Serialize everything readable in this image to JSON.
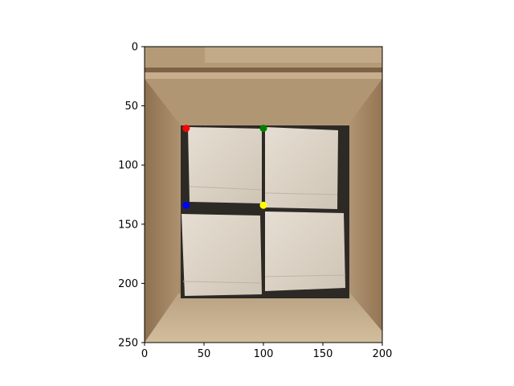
{
  "chart_data": {
    "type": "scatter",
    "title": "",
    "xlabel": "",
    "ylabel": "",
    "xlim": [
      0,
      200
    ],
    "ylim": [
      250,
      0
    ],
    "y_inverted": true,
    "grid": false,
    "background": "photo of an open cardboard box containing four white boxes",
    "x_ticks": [
      0,
      50,
      100,
      150,
      200
    ],
    "y_ticks": [
      0,
      50,
      100,
      150,
      200,
      250
    ],
    "series": [
      {
        "color": "#ff0000",
        "x": [
          35
        ],
        "y": [
          69
        ]
      },
      {
        "color": "#008000",
        "x": [
          100
        ],
        "y": [
          69
        ]
      },
      {
        "color": "#0000ff",
        "x": [
          35
        ],
        "y": [
          134
        ]
      },
      {
        "color": "#ffff00",
        "x": [
          100
        ],
        "y": [
          134
        ]
      }
    ]
  }
}
